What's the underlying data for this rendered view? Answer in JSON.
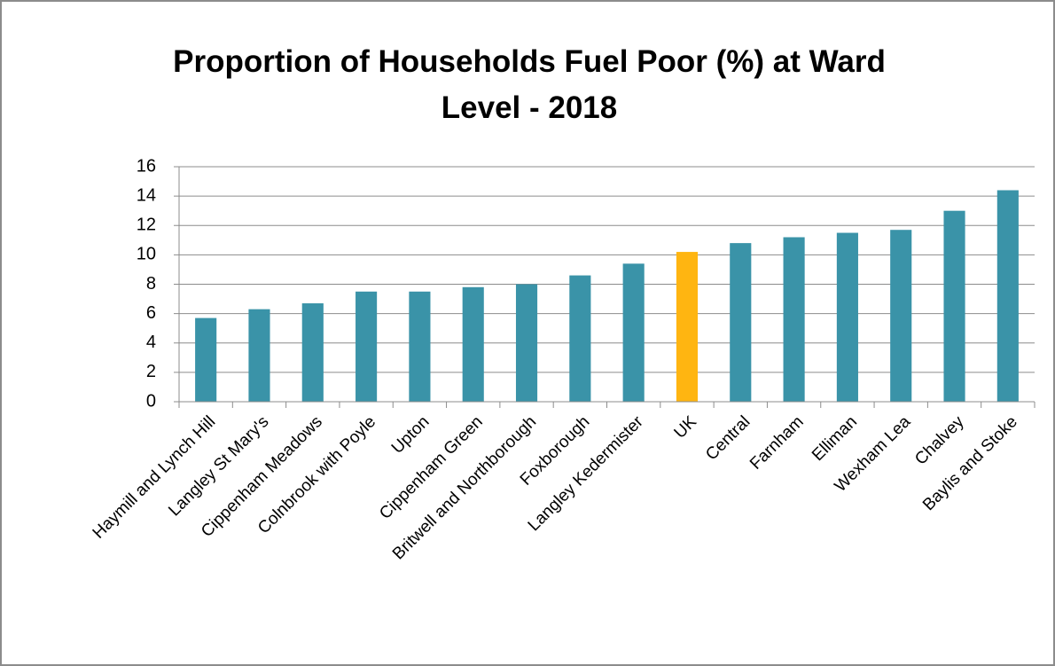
{
  "chart_data": {
    "type": "bar",
    "title": "Proportion of Households Fuel Poor (%) at Ward Level - 2018",
    "categories": [
      "Haymill and Lynch Hill",
      "Langley St Mary's",
      "Cippenham Meadows",
      "Colnbrook with Poyle",
      "Upton",
      "Cippenham Green",
      "Britwell and Northborough",
      "Foxborough",
      "Langley Kedermister",
      "UK",
      "Central",
      "Farnham",
      "Elliman",
      "Wexham Lea",
      "Chalvey",
      "Baylis and Stoke"
    ],
    "values": [
      5.7,
      6.3,
      6.7,
      7.5,
      7.5,
      7.8,
      8.0,
      8.6,
      9.4,
      10.2,
      10.8,
      11.2,
      11.5,
      11.7,
      13.0,
      14.4
    ],
    "colors": [
      "#3a93a8",
      "#3a93a8",
      "#3a93a8",
      "#3a93a8",
      "#3a93a8",
      "#3a93a8",
      "#3a93a8",
      "#3a93a8",
      "#3a93a8",
      "#ffb511",
      "#3a93a8",
      "#3a93a8",
      "#3a93a8",
      "#3a93a8",
      "#3a93a8",
      "#3a93a8"
    ],
    "ylim": [
      0,
      16
    ],
    "yticks": [
      0,
      2,
      4,
      6,
      8,
      10,
      12,
      14,
      16
    ],
    "grid": true
  }
}
